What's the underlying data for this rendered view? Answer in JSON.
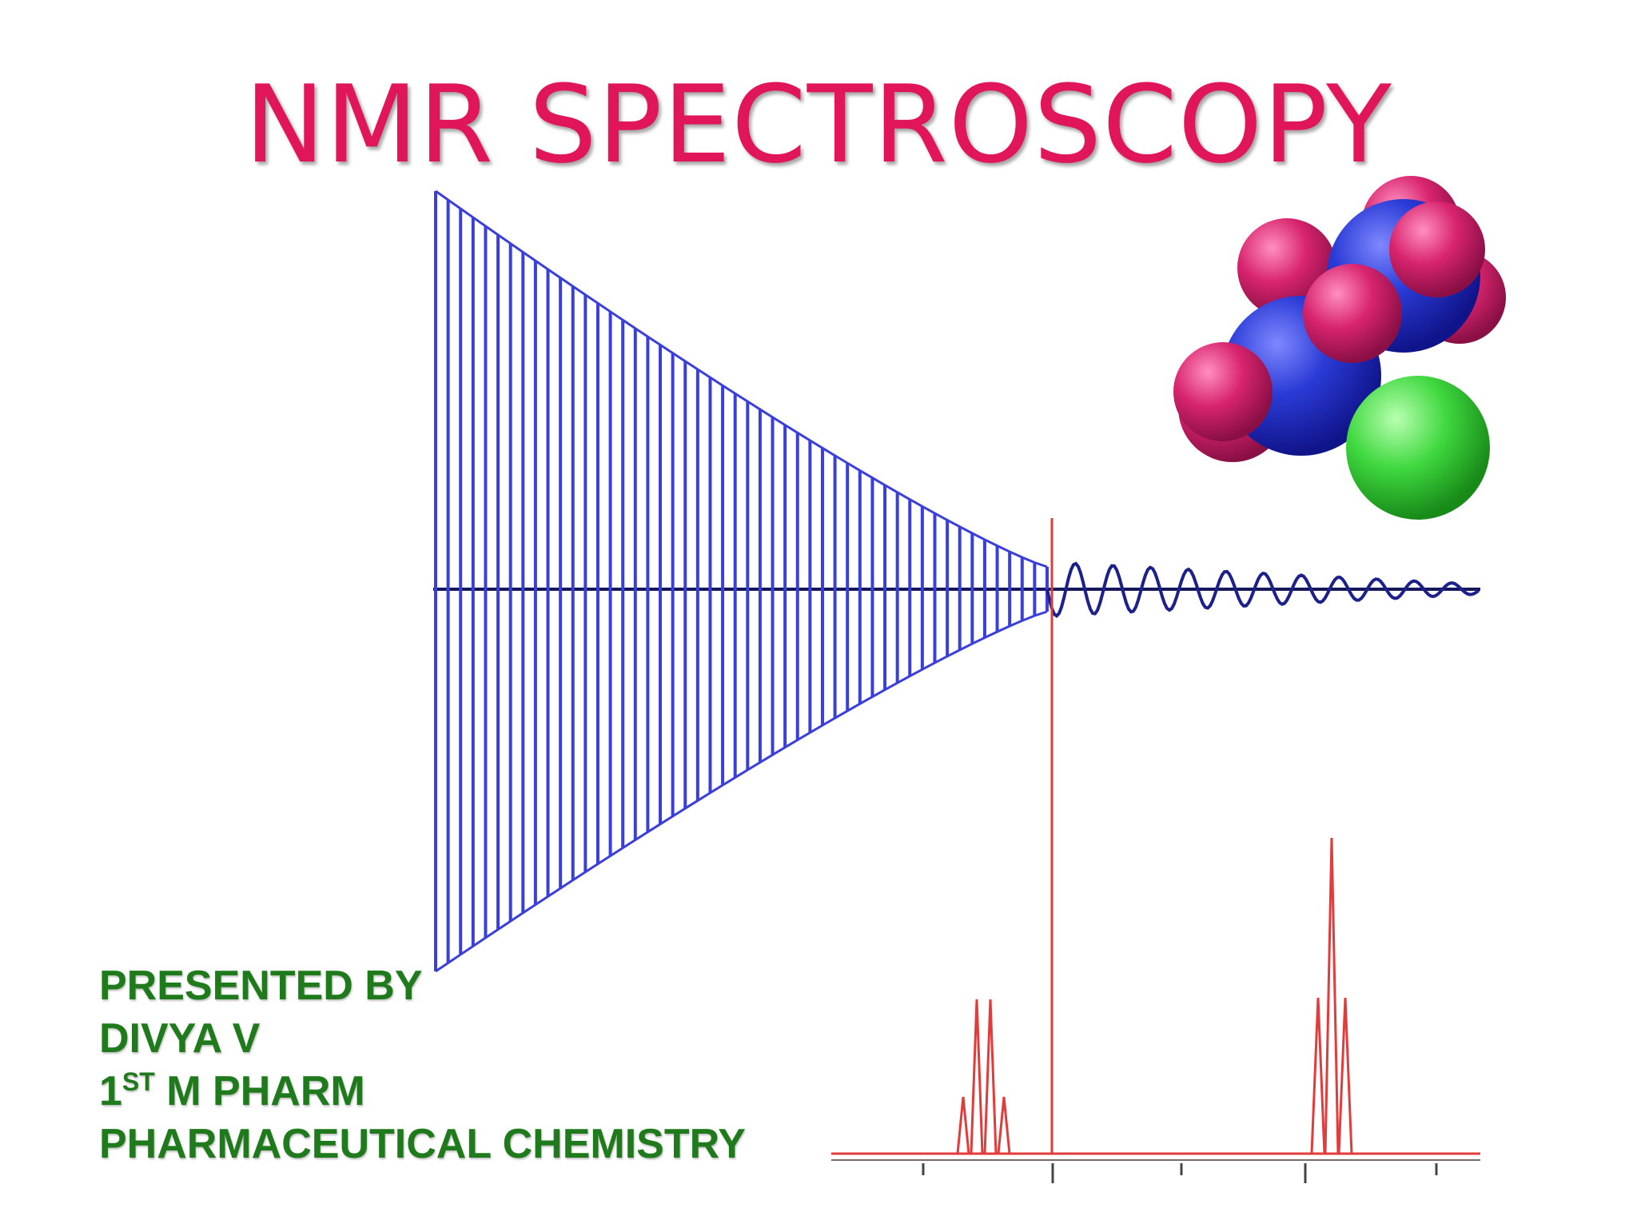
{
  "slide": {
    "title": "NMR SPECTROSCOPY",
    "presenter": {
      "line1": "PRESENTED BY",
      "line2": "DIVYA V",
      "line3_number": "1",
      "line3_superscript": "ST",
      "line3_rest": " M PHARM",
      "line4": "PHARMACEUTICAL CHEMISTRY"
    }
  },
  "colors": {
    "title": "#e0155a",
    "presenter_text": "#1e7a1b",
    "fid_signal": "#3a3fd9",
    "spectrum": "#e23b3b",
    "atom_carbon": "#2a3bd6",
    "atom_hydrogen": "#d8246e",
    "atom_chlorine": "#3fd83f"
  },
  "illustration": {
    "fid": "decaying-sine-signal",
    "spectrum": "nmr-peaks",
    "molecule": "space-filling-molecule-model"
  }
}
